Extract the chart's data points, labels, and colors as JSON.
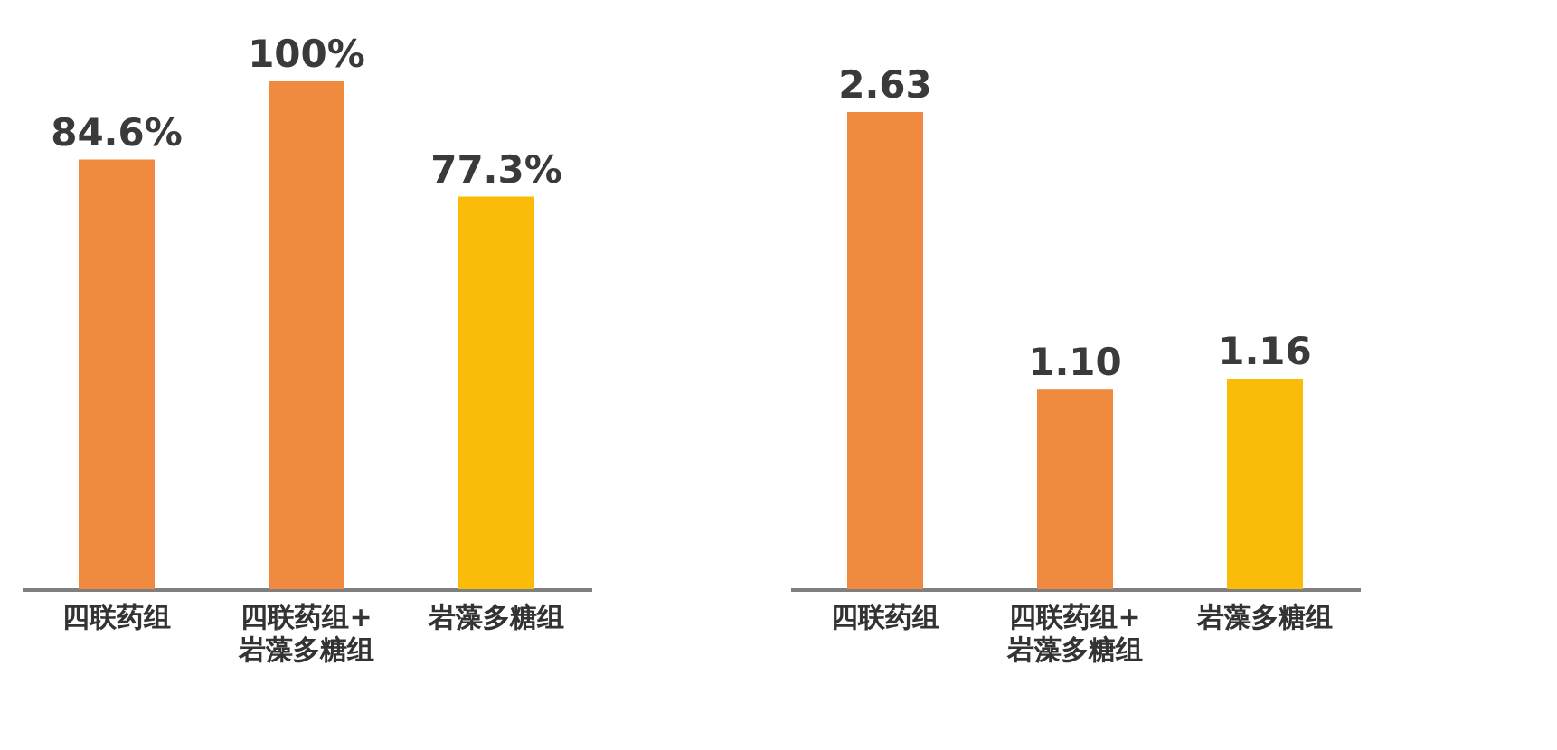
{
  "chart_data": [
    {
      "type": "bar",
      "categories": [
        "四联药组",
        "四联药组+\n岩藻多糖组",
        "岩藻多糖组"
      ],
      "values": [
        84.6,
        100,
        77.3
      ],
      "colors": [
        "#ef8a3f",
        "#ef8a3f",
        "#fbbc09"
      ],
      "value_labels": [
        "84.6%",
        "100%",
        "77.3%"
      ]
    },
    {
      "type": "bar",
      "categories": [
        "四联药组",
        "四联药组+\n岩藻多糖组",
        "岩藻多糖组"
      ],
      "values": [
        2.63,
        1.1,
        1.16
      ],
      "colors": [
        "#ef8a3f",
        "#ef8a3f",
        "#fbbc09"
      ],
      "value_labels": [
        "2.63",
        "1.10",
        "1.16"
      ]
    }
  ]
}
